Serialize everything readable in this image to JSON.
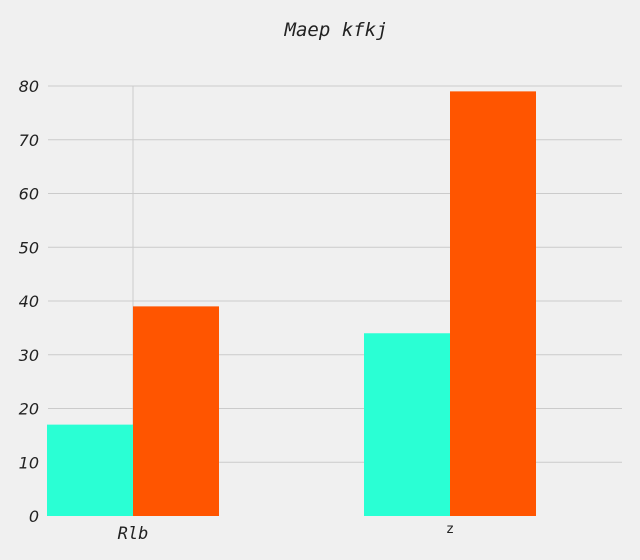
{
  "chart_data": {
    "type": "bar",
    "title": "Maep kfkj",
    "xlabel": "",
    "ylabel": "",
    "categories": [
      "Rlb",
      "z"
    ],
    "series": [
      {
        "values": [
          17,
          34
        ],
        "color": "#2affd4"
      },
      {
        "values": [
          39,
          79
        ],
        "color": "#ff5500"
      }
    ],
    "ylim": [
      0,
      80
    ],
    "yticks": [
      0,
      10,
      20,
      30,
      40,
      50,
      60,
      70,
      80
    ],
    "grid": true,
    "legend": "none",
    "background": "#f0f0f0"
  }
}
